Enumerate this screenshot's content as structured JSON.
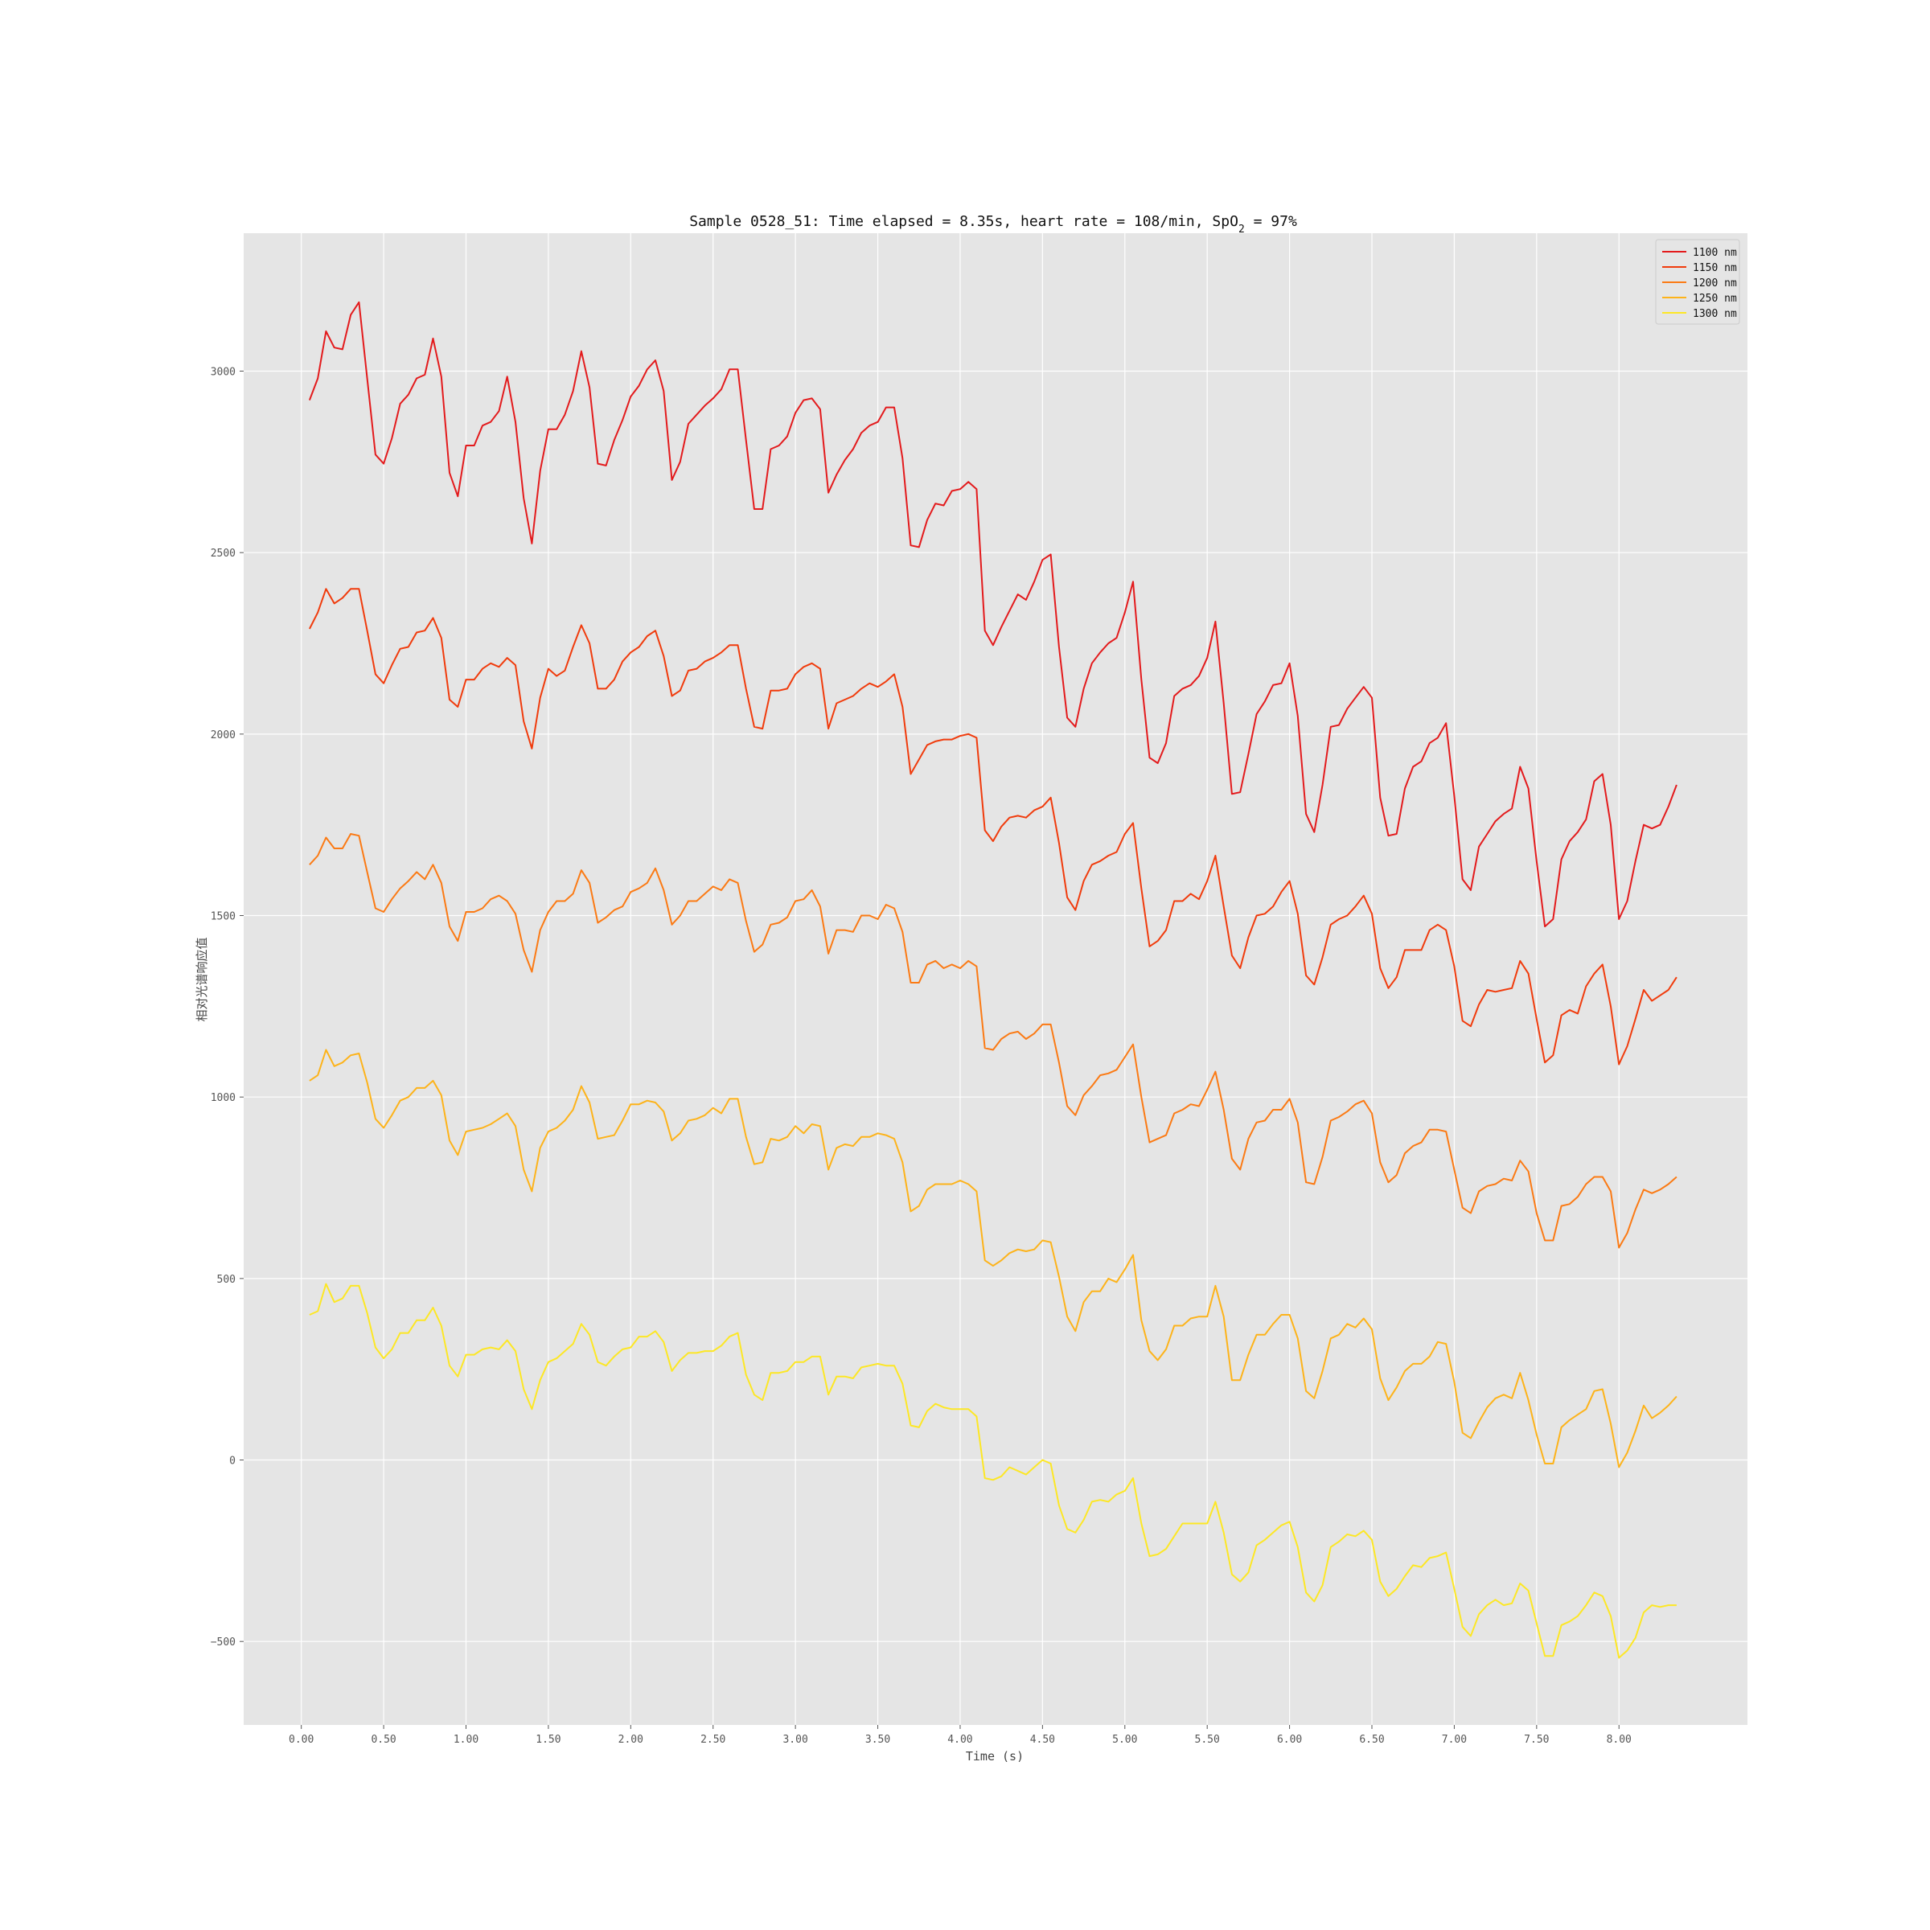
{
  "chart_data": {
    "type": "line",
    "title_prefix": "Sample 0528_51: Time elapsed = 8.35s, heart rate = 108/min, SpO",
    "title_sub": "2",
    "title_suffix": " = 97%",
    "xlabel": "Time (s)",
    "ylabel": "相对光谱响应值",
    "xlim": [
      -0.35,
      8.78
    ],
    "ylim": [
      -730,
      3380
    ],
    "x_ticks": [
      "0.00",
      "0.50",
      "1.00",
      "1.50",
      "2.00",
      "2.50",
      "3.00",
      "3.50",
      "4.00",
      "4.50",
      "5.00",
      "5.50",
      "6.00",
      "6.50",
      "7.00",
      "7.50",
      "8.00"
    ],
    "x_tick_values": [
      0,
      0.5,
      1,
      1.5,
      2,
      2.5,
      3,
      3.5,
      4,
      4.5,
      5,
      5.5,
      6,
      6.5,
      7,
      7.5,
      8
    ],
    "y_ticks": [
      "−500",
      "0",
      "500",
      "1000",
      "1500",
      "2000",
      "2500",
      "3000"
    ],
    "y_tick_values": [
      -500,
      0,
      500,
      1000,
      1500,
      2000,
      2500,
      3000
    ],
    "grid": true,
    "legend_position": "top-right",
    "x": [
      0.05,
      0.1,
      0.15,
      0.2,
      0.25,
      0.3,
      0.35,
      0.4,
      0.45,
      0.5,
      0.55,
      0.6,
      0.65,
      0.7,
      0.75,
      0.8,
      0.85,
      0.9,
      0.95,
      1.0,
      1.05,
      1.1,
      1.15,
      1.2,
      1.25,
      1.3,
      1.35,
      1.4,
      1.45,
      1.5,
      1.55,
      1.6,
      1.65,
      1.7,
      1.75,
      1.8,
      1.85,
      1.9,
      1.95,
      2.0,
      2.05,
      2.1,
      2.15,
      2.2,
      2.25,
      2.3,
      2.35,
      2.4,
      2.45,
      2.5,
      2.55,
      2.6,
      2.65,
      2.7,
      2.75,
      2.8,
      2.85,
      2.9,
      2.95,
      3.0,
      3.05,
      3.1,
      3.15,
      3.2,
      3.25,
      3.3,
      3.35,
      3.4,
      3.45,
      3.5,
      3.55,
      3.6,
      3.65,
      3.7,
      3.75,
      3.8,
      3.85,
      3.9,
      3.95,
      4.0,
      4.05,
      4.1,
      4.15,
      4.2,
      4.25,
      4.3,
      4.35,
      4.4,
      4.45,
      4.5,
      4.55,
      4.6,
      4.65,
      4.7,
      4.75,
      4.8,
      4.85,
      4.9,
      4.95,
      5.0,
      5.05,
      5.1,
      5.15,
      5.2,
      5.25,
      5.3,
      5.35,
      5.4,
      5.45,
      5.5,
      5.55,
      5.6,
      5.65,
      5.7,
      5.75,
      5.8,
      5.85,
      5.9,
      5.95,
      6.0,
      6.05,
      6.1,
      6.15,
      6.2,
      6.25,
      6.3,
      6.35,
      6.4,
      6.45,
      6.5,
      6.55,
      6.6,
      6.65,
      6.7,
      6.75,
      6.8,
      6.85,
      6.9,
      6.95,
      7.0,
      7.05,
      7.1,
      7.15,
      7.2,
      7.25,
      7.3,
      7.35,
      7.4,
      7.45,
      7.5,
      7.55,
      7.6,
      7.65,
      7.7,
      7.75,
      7.8,
      7.85,
      7.9,
      7.95,
      8.0,
      8.05,
      8.1,
      8.15,
      8.2,
      8.25,
      8.3,
      8.35
    ],
    "series": [
      {
        "name": "1100 nm",
        "color": "#e31a1c",
        "values": [
          2920,
          2980,
          3110,
          3065,
          3060,
          3155,
          3190,
          2980,
          2770,
          2745,
          2815,
          2910,
          2935,
          2980,
          2990,
          3090,
          2985,
          2720,
          2655,
          2795,
          2795,
          2850,
          2860,
          2890,
          2985,
          2860,
          2650,
          2525,
          2725,
          2840,
          2840,
          2880,
          2945,
          3055,
          2955,
          2745,
          2740,
          2810,
          2865,
          2930,
          2960,
          3005,
          3030,
          2945,
          2700,
          2750,
          2855,
          2880,
          2905,
          2925,
          2950,
          3005,
          3005,
          2810,
          2620,
          2620,
          2785,
          2795,
          2820,
          2885,
          2920,
          2925,
          2895,
          2665,
          2715,
          2755,
          2785,
          2830,
          2850,
          2860,
          2900,
          2900,
          2760,
          2520,
          2515,
          2590,
          2635,
          2630,
          2670,
          2675,
          2695,
          2675,
          2285,
          2245,
          2295,
          2340,
          2385,
          2370,
          2420,
          2480,
          2495,
          2240,
          2045,
          2020,
          2125,
          2195,
          2225,
          2250,
          2265,
          2335,
          2420,
          2150,
          1935,
          1920,
          1975,
          2105,
          2125,
          2135,
          2160,
          2210,
          2310,
          2085,
          1835,
          1840,
          1945,
          2055,
          2090,
          2135,
          2140,
          2195,
          2050,
          1780,
          1730,
          1860,
          2020,
          2025,
          2070,
          2100,
          2130,
          2100,
          1825,
          1720,
          1725,
          1850,
          1910,
          1925,
          1975,
          1990,
          2030,
          1830,
          1600,
          1570,
          1690,
          1725,
          1760,
          1780,
          1795,
          1910,
          1850,
          1650,
          1470,
          1490,
          1655,
          1705,
          1730,
          1765,
          1870,
          1890,
          1750,
          1490,
          1540,
          1650,
          1750,
          1740,
          1750,
          1800,
          1860
        ]
      },
      {
        "name": "1150 nm",
        "color": "#f03b0c",
        "values": [
          2290,
          2335,
          2400,
          2360,
          2375,
          2400,
          2400,
          2285,
          2165,
          2140,
          2190,
          2235,
          2240,
          2280,
          2285,
          2320,
          2265,
          2095,
          2075,
          2150,
          2150,
          2180,
          2195,
          2185,
          2210,
          2190,
          2035,
          1960,
          2100,
          2180,
          2160,
          2175,
          2240,
          2300,
          2250,
          2125,
          2125,
          2150,
          2200,
          2225,
          2240,
          2270,
          2285,
          2215,
          2105,
          2120,
          2175,
          2180,
          2200,
          2210,
          2225,
          2245,
          2245,
          2125,
          2020,
          2015,
          2120,
          2120,
          2125,
          2165,
          2185,
          2195,
          2180,
          2015,
          2085,
          2095,
          2105,
          2125,
          2140,
          2130,
          2145,
          2165,
          2075,
          1890,
          1930,
          1970,
          1980,
          1985,
          1985,
          1995,
          2000,
          1990,
          1735,
          1705,
          1745,
          1770,
          1775,
          1770,
          1790,
          1800,
          1825,
          1700,
          1550,
          1515,
          1595,
          1640,
          1650,
          1665,
          1675,
          1725,
          1755,
          1575,
          1415,
          1430,
          1460,
          1540,
          1540,
          1560,
          1545,
          1595,
          1665,
          1525,
          1390,
          1355,
          1440,
          1500,
          1505,
          1525,
          1565,
          1595,
          1505,
          1335,
          1310,
          1385,
          1475,
          1490,
          1500,
          1525,
          1555,
          1505,
          1355,
          1300,
          1330,
          1405,
          1405,
          1405,
          1460,
          1475,
          1460,
          1360,
          1210,
          1195,
          1255,
          1295,
          1290,
          1295,
          1300,
          1375,
          1340,
          1215,
          1095,
          1115,
          1225,
          1240,
          1230,
          1305,
          1340,
          1365,
          1250,
          1090,
          1140,
          1215,
          1295,
          1265,
          1280,
          1295,
          1330
        ]
      },
      {
        "name": "1200 nm",
        "color": "#fb7a14",
        "values": [
          1640,
          1665,
          1715,
          1685,
          1685,
          1725,
          1720,
          1620,
          1520,
          1510,
          1545,
          1575,
          1595,
          1620,
          1600,
          1640,
          1590,
          1470,
          1430,
          1510,
          1510,
          1520,
          1545,
          1555,
          1540,
          1505,
          1405,
          1345,
          1460,
          1510,
          1540,
          1540,
          1560,
          1625,
          1590,
          1480,
          1495,
          1515,
          1525,
          1565,
          1575,
          1590,
          1630,
          1570,
          1475,
          1500,
          1540,
          1540,
          1560,
          1580,
          1570,
          1600,
          1590,
          1485,
          1400,
          1420,
          1475,
          1480,
          1495,
          1540,
          1545,
          1570,
          1525,
          1395,
          1460,
          1460,
          1455,
          1500,
          1500,
          1490,
          1530,
          1520,
          1455,
          1315,
          1315,
          1365,
          1375,
          1355,
          1365,
          1355,
          1375,
          1360,
          1135,
          1130,
          1160,
          1175,
          1180,
          1160,
          1175,
          1200,
          1200,
          1095,
          975,
          950,
          1005,
          1030,
          1060,
          1065,
          1075,
          1110,
          1145,
          1000,
          875,
          885,
          895,
          955,
          965,
          980,
          975,
          1020,
          1070,
          965,
          830,
          800,
          885,
          930,
          935,
          965,
          965,
          995,
          930,
          765,
          760,
          835,
          935,
          945,
          960,
          980,
          990,
          955,
          820,
          765,
          785,
          845,
          865,
          875,
          910,
          910,
          905,
          800,
          695,
          680,
          740,
          755,
          760,
          775,
          770,
          825,
          795,
          680,
          605,
          605,
          700,
          705,
          725,
          760,
          780,
          780,
          740,
          585,
          625,
          690,
          745,
          735,
          745,
          760,
          780
        ]
      },
      {
        "name": "1250 nm",
        "color": "#fdb31a",
        "values": [
          1045,
          1060,
          1130,
          1085,
          1095,
          1115,
          1120,
          1040,
          940,
          915,
          950,
          990,
          1000,
          1025,
          1025,
          1045,
          1005,
          880,
          840,
          905,
          910,
          915,
          925,
          940,
          955,
          920,
          800,
          740,
          860,
          905,
          915,
          935,
          965,
          1030,
          985,
          885,
          890,
          895,
          935,
          980,
          980,
          990,
          985,
          960,
          880,
          900,
          935,
          940,
          950,
          970,
          955,
          995,
          995,
          890,
          815,
          820,
          885,
          880,
          890,
          920,
          900,
          925,
          920,
          800,
          860,
          870,
          865,
          890,
          890,
          900,
          895,
          885,
          820,
          685,
          700,
          745,
          760,
          760,
          760,
          770,
          760,
          740,
          550,
          535,
          550,
          570,
          580,
          575,
          580,
          605,
          600,
          505,
          395,
          355,
          435,
          465,
          465,
          500,
          490,
          525,
          565,
          385,
          300,
          275,
          305,
          370,
          370,
          390,
          395,
          395,
          480,
          395,
          220,
          220,
          290,
          345,
          345,
          375,
          400,
          400,
          335,
          190,
          170,
          245,
          335,
          345,
          375,
          365,
          390,
          360,
          225,
          165,
          200,
          245,
          265,
          265,
          285,
          325,
          320,
          215,
          75,
          60,
          105,
          145,
          170,
          180,
          170,
          240,
          165,
          70,
          -10,
          -10,
          90,
          110,
          125,
          140,
          190,
          195,
          100,
          -20,
          20,
          80,
          150,
          115,
          130,
          150,
          175
        ]
      },
      {
        "name": "1300 nm",
        "color": "#fde725",
        "values": [
          400,
          410,
          485,
          435,
          445,
          480,
          480,
          405,
          310,
          280,
          305,
          350,
          350,
          385,
          385,
          420,
          370,
          260,
          230,
          290,
          290,
          305,
          310,
          305,
          330,
          300,
          195,
          140,
          220,
          270,
          280,
          300,
          320,
          375,
          345,
          270,
          260,
          285,
          305,
          310,
          340,
          340,
          355,
          325,
          245,
          275,
          295,
          295,
          300,
          300,
          315,
          340,
          350,
          235,
          180,
          165,
          240,
          240,
          245,
          270,
          270,
          285,
          285,
          180,
          230,
          230,
          225,
          255,
          260,
          265,
          260,
          260,
          210,
          95,
          90,
          135,
          155,
          145,
          140,
          140,
          140,
          120,
          -50,
          -55,
          -45,
          -20,
          -30,
          -40,
          -20,
          0,
          -10,
          -125,
          -190,
          -200,
          -165,
          -115,
          -110,
          -115,
          -95,
          -85,
          -50,
          -175,
          -265,
          -260,
          -245,
          -210,
          -175,
          -175,
          -175,
          -175,
          -115,
          -200,
          -315,
          -335,
          -310,
          -235,
          -220,
          -200,
          -180,
          -170,
          -240,
          -365,
          -390,
          -345,
          -240,
          -225,
          -205,
          -210,
          -195,
          -220,
          -335,
          -375,
          -355,
          -320,
          -290,
          -295,
          -270,
          -265,
          -255,
          -355,
          -460,
          -485,
          -425,
          -400,
          -385,
          -400,
          -395,
          -340,
          -360,
          -450,
          -540,
          -540,
          -455,
          -445,
          -430,
          -400,
          -365,
          -375,
          -430,
          -545,
          -525,
          -490,
          -420,
          -400,
          -405,
          -400,
          -400
        ]
      }
    ]
  }
}
